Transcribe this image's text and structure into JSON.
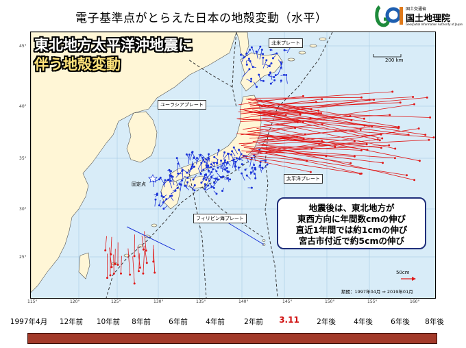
{
  "title": "電子基準点がとらえた日本の地殻変動（水平）",
  "logo": {
    "ministry": "国土交通省",
    "name": "国土地理院",
    "english": "Geospatial Information Authority of Japan"
  },
  "headline": {
    "line1": "東北地方太平洋沖地震に",
    "line2": "伴う地殻変動"
  },
  "plates": {
    "north_america": "北米プレート",
    "eurasia": "ユーラシアプレート",
    "pacific": "太平洋プレート",
    "philippine": "フィリピン海プレート"
  },
  "fixed_point": "固定点",
  "distance_scale": "200 km",
  "callout": [
    "地震後は、東北地方が",
    "東西方向に年間数cmの伸び",
    "直近1年間では約1cmの伸び",
    "宮古市付近で約5cmの伸び"
  ],
  "vector_scale": "50cm",
  "period": "期間：1997年04月 ⇒ 2019年01月",
  "lon_ticks": [
    "115°",
    "120°",
    "125°",
    "130°",
    "135°",
    "140°",
    "145°",
    "150°",
    "155°",
    "160°"
  ],
  "lat_ticks": [
    "45°",
    "40°",
    "35°",
    "30°",
    "25°"
  ],
  "timeline": {
    "ticks": [
      "1997年4月",
      "12年前",
      "10年前",
      "8年前",
      "6年前",
      "4年前",
      "2年前",
      "3.11",
      "2年後",
      "4年後",
      "6年後",
      "8年後"
    ],
    "event": "3.11"
  },
  "colors": {
    "sea": "#d8ecf8",
    "land": "#fff6d6",
    "pre_event_vectors": "#1a33d8",
    "post_event_vectors": "#e01818",
    "timeline_bar": "#a33a2a"
  }
}
